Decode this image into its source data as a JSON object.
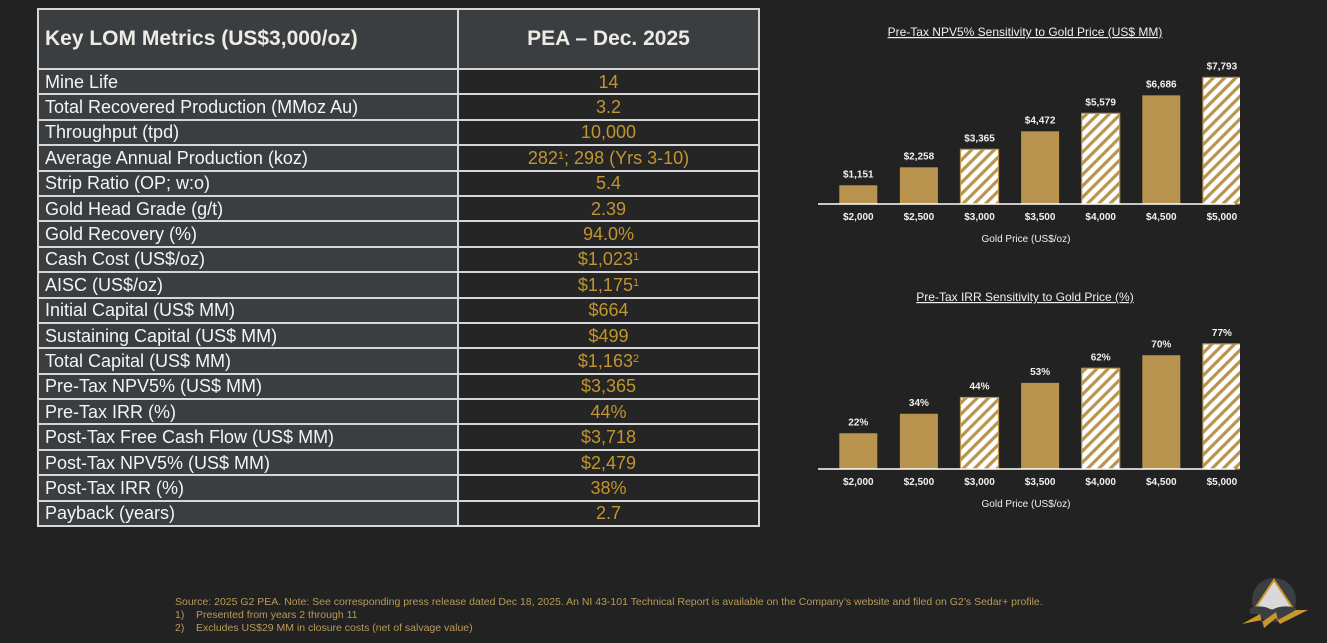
{
  "table": {
    "header_left": "Key LOM Metrics (US$3,000/oz)",
    "header_right": "PEA – Dec. 2025",
    "rows": [
      {
        "label": "Mine Life",
        "value": "14",
        "sup": ""
      },
      {
        "label": "Total Recovered Production (MMoz Au)",
        "value": "3.2",
        "sup": ""
      },
      {
        "label": "Throughput (tpd)",
        "value": "10,000",
        "sup": ""
      },
      {
        "label": "Average Annual Production (koz)",
        "value": "282",
        "sup": "1",
        "suffix": "; 298 (Yrs 3-10)"
      },
      {
        "label": "Strip Ratio (OP; w:o)",
        "value": "5.4",
        "sup": ""
      },
      {
        "label": "Gold Head Grade (g/t)",
        "value": "2.39",
        "sup": ""
      },
      {
        "label": "Gold Recovery (%)",
        "value": "94.0%",
        "sup": ""
      },
      {
        "label": "Cash Cost (US$/oz)",
        "value": "$1,023",
        "sup": "1"
      },
      {
        "label": "AISC (US$/oz)",
        "value": "$1,175",
        "sup": "1"
      },
      {
        "label": "Initial Capital (US$ MM)",
        "value": "$664",
        "sup": ""
      },
      {
        "label": "Sustaining Capital (US$ MM)",
        "value": "$499",
        "sup": ""
      },
      {
        "label": "Total Capital (US$ MM)",
        "value": "$1,163",
        "sup": "2"
      },
      {
        "label": "Pre-Tax NPV5% (US$ MM)",
        "value": "$3,365",
        "sup": ""
      },
      {
        "label": "Pre-Tax IRR (%)",
        "value": "44%",
        "sup": ""
      },
      {
        "label": "Post-Tax Free Cash Flow (US$ MM)",
        "value": "$3,718",
        "sup": ""
      },
      {
        "label": "Post-Tax NPV5% (US$ MM)",
        "value": "$2,479",
        "sup": ""
      },
      {
        "label": "Post-Tax IRR (%)",
        "value": "38%",
        "sup": ""
      },
      {
        "label": "Payback (years)",
        "value": "2.7",
        "sup": ""
      }
    ]
  },
  "colors": {
    "gold": "#b8944f",
    "value_text": "#c1952f",
    "hatch_bg": "#ffffff",
    "background": "#222222"
  },
  "chart_data": [
    {
      "type": "bar",
      "title": "Pre-Tax NPV5% Sensitivity to Gold Price (US$ MM)",
      "xlabel": "Gold Price (US$/oz)",
      "ylabel": "",
      "categories": [
        "$2,000",
        "$2,500",
        "$3,000",
        "$3,500",
        "$4,000",
        "$4,500",
        "$5,000"
      ],
      "values": [
        1151,
        2258,
        3365,
        4472,
        5579,
        6686,
        7793
      ],
      "value_labels": [
        "$1,151",
        "$2,258",
        "$3,365",
        "$4,472",
        "$5,579",
        "$6,686",
        "$7,793"
      ],
      "hatched": [
        false,
        false,
        true,
        false,
        true,
        false,
        true
      ],
      "ylim": [
        0,
        8000
      ],
      "grid": false,
      "legend": "none"
    },
    {
      "type": "bar",
      "title": "Pre-Tax IRR Sensitivity to Gold Price (%)",
      "xlabel": "Gold Price (US$/oz)",
      "ylabel": "",
      "categories": [
        "$2,000",
        "$2,500",
        "$3,000",
        "$3,500",
        "$4,000",
        "$4,500",
        "$5,000"
      ],
      "values": [
        22,
        34,
        44,
        53,
        62,
        70,
        77
      ],
      "value_labels": [
        "22%",
        "34%",
        "44%",
        "53%",
        "62%",
        "70%",
        "77%"
      ],
      "hatched": [
        false,
        false,
        true,
        false,
        true,
        false,
        true
      ],
      "ylim": [
        0,
        80
      ],
      "grid": false,
      "legend": "none"
    }
  ],
  "footnotes": {
    "source": "Source: 2025 G2 PEA. Note: See corresponding press release dated Dec 18, 2025. An NI 43-101 Technical Report is available on the Company’s website and filed on G2’s Sedar+ profile.",
    "items": [
      {
        "num": "1)",
        "text": "Presented from years 2 through 11"
      },
      {
        "num": "2)",
        "text": "Excludes US$29 MM in closure costs (net of salvage value)"
      }
    ]
  },
  "logo": {
    "icon": "mountain-logo-icon"
  }
}
